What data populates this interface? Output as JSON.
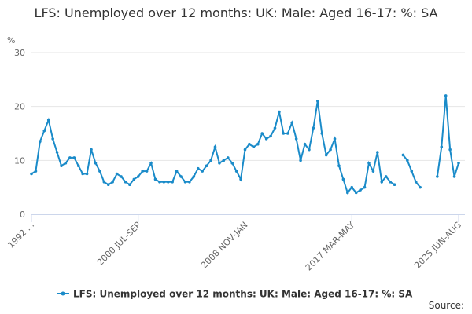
{
  "chart_data": {
    "type": "line",
    "title": "LFS: Unemployed over 12 months: UK: Male: Aged 16-17: %: SA",
    "y_unit": "%",
    "source": "Source:",
    "categories": [
      "1992 ...",
      null,
      null,
      null,
      null,
      null,
      null,
      null,
      null,
      null,
      null,
      null,
      null,
      null,
      null,
      null,
      null,
      null,
      null,
      null,
      null,
      null,
      null,
      null,
      null,
      "2000 JUL-SEP",
      null,
      null,
      null,
      null,
      null,
      null,
      null,
      null,
      null,
      null,
      null,
      null,
      null,
      null,
      null,
      null,
      null,
      null,
      null,
      null,
      null,
      null,
      null,
      null,
      "2008 NOV-JAN",
      null,
      null,
      null,
      null,
      null,
      null,
      null,
      null,
      null,
      null,
      null,
      null,
      null,
      null,
      null,
      null,
      null,
      null,
      null,
      null,
      null,
      null,
      null,
      null,
      "2017 MAR-MAY",
      null,
      null,
      null,
      null,
      null,
      null,
      null,
      null,
      null,
      null,
      null,
      null,
      null,
      null,
      null,
      null,
      null,
      null,
      null,
      null,
      null,
      null,
      null,
      null,
      "2025 JUN-AUG"
    ],
    "series": [
      {
        "name": "LFS: Unemployed over 12 months: UK: Male: Aged 16-17: %: SA",
        "color": "#1a8bc9",
        "values": [
          7.5,
          8,
          13.5,
          15.5,
          17.5,
          14,
          11.5,
          9,
          9.5,
          10.5,
          10.5,
          9,
          7.5,
          7.5,
          12,
          9.5,
          8,
          6,
          5.5,
          6,
          7.5,
          7,
          6,
          5.5,
          6.5,
          7,
          8,
          8,
          9.5,
          6.5,
          6,
          6,
          6,
          6,
          8,
          7,
          6,
          6,
          7,
          8.5,
          8,
          9,
          10,
          12.5,
          9.5,
          10,
          10.5,
          9.5,
          8,
          6.5,
          12,
          13,
          12.5,
          13,
          15,
          14,
          14.5,
          16,
          19,
          15,
          15,
          17,
          14,
          10,
          13,
          12,
          16,
          21,
          15,
          11,
          12,
          14,
          9,
          6.5,
          4,
          5,
          4,
          4.5,
          5,
          9.5,
          8,
          11.5,
          6,
          7,
          6,
          5.5,
          null,
          11,
          10,
          8,
          6,
          5,
          null,
          null,
          null,
          7,
          12.5,
          22,
          12,
          7,
          9.5
        ]
      }
    ],
    "ylim": [
      0,
      30
    ],
    "yticks": [
      0,
      10,
      20,
      30
    ],
    "grid": true
  }
}
